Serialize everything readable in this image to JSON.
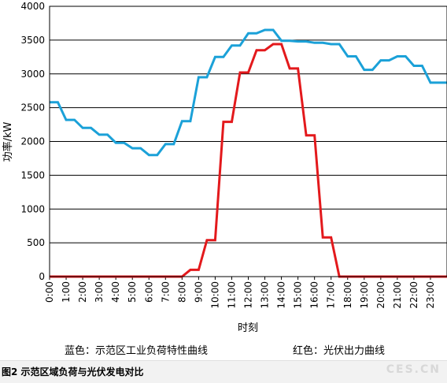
{
  "chart_data": {
    "type": "line",
    "title": "",
    "xlabel": "时刻",
    "ylabel": "功率/kW",
    "ylim": [
      0,
      4000
    ],
    "yticks": [
      0,
      500,
      1000,
      1500,
      2000,
      2500,
      3000,
      3500,
      4000
    ],
    "xticks": [
      "0:00",
      "1:00",
      "2:00",
      "3:00",
      "4:00",
      "5:00",
      "6:00",
      "7:00",
      "8:00",
      "9:00",
      "10:00",
      "11:00",
      "12:00",
      "13:00",
      "14:00",
      "15:00",
      "16:00",
      "17:00",
      "18:00",
      "19:00",
      "20:00",
      "21:00",
      "22:00",
      "23:00"
    ],
    "grid": "horizontal",
    "series": [
      {
        "color": "#1ba1d8",
        "x": [
          0,
          0.5,
          1,
          1.5,
          2,
          2.5,
          3,
          3.5,
          4,
          4.5,
          5,
          5.5,
          6,
          6.5,
          7,
          7.5,
          8,
          8.5,
          9,
          9.5,
          10,
          10.5,
          11,
          11.5,
          12,
          12.5,
          13,
          13.5,
          14,
          14.5,
          15,
          15.5,
          16,
          16.5,
          17,
          17.5,
          18,
          18.5,
          19,
          19.5,
          20,
          20.5,
          21,
          21.5,
          22,
          22.5,
          23,
          23.5,
          24
        ],
        "values": [
          2580,
          2580,
          2320,
          2320,
          2200,
          2200,
          2100,
          2100,
          1980,
          1980,
          1900,
          1900,
          1800,
          1800,
          1960,
          1960,
          2300,
          2300,
          2950,
          2950,
          3250,
          3250,
          3420,
          3420,
          3600,
          3600,
          3650,
          3650,
          3490,
          3490,
          3480,
          3480,
          3460,
          3460,
          3440,
          3440,
          3260,
          3260,
          3060,
          3060,
          3200,
          3200,
          3260,
          3260,
          3120,
          3120,
          2870,
          2870,
          2870
        ]
      },
      {
        "color": "#e3191c",
        "x": [
          0,
          8,
          8.5,
          9,
          9.5,
          10,
          10.5,
          11,
          11.5,
          12,
          12.5,
          13,
          13.5,
          14,
          14.5,
          15,
          15.5,
          16,
          16.5,
          17,
          17.5,
          24
        ],
        "values": [
          0,
          0,
          100,
          100,
          540,
          540,
          2290,
          2290,
          3020,
          3020,
          3350,
          3350,
          3440,
          3440,
          3080,
          3080,
          2090,
          2090,
          580,
          580,
          0,
          0
        ]
      }
    ],
    "legend_entries": [
      "蓝色：示范区工业负荷特性曲线",
      "红色：光伏出力曲线"
    ]
  },
  "caption": "图2 示范区域负荷与光伏发电对比",
  "watermark": "CES.CN"
}
